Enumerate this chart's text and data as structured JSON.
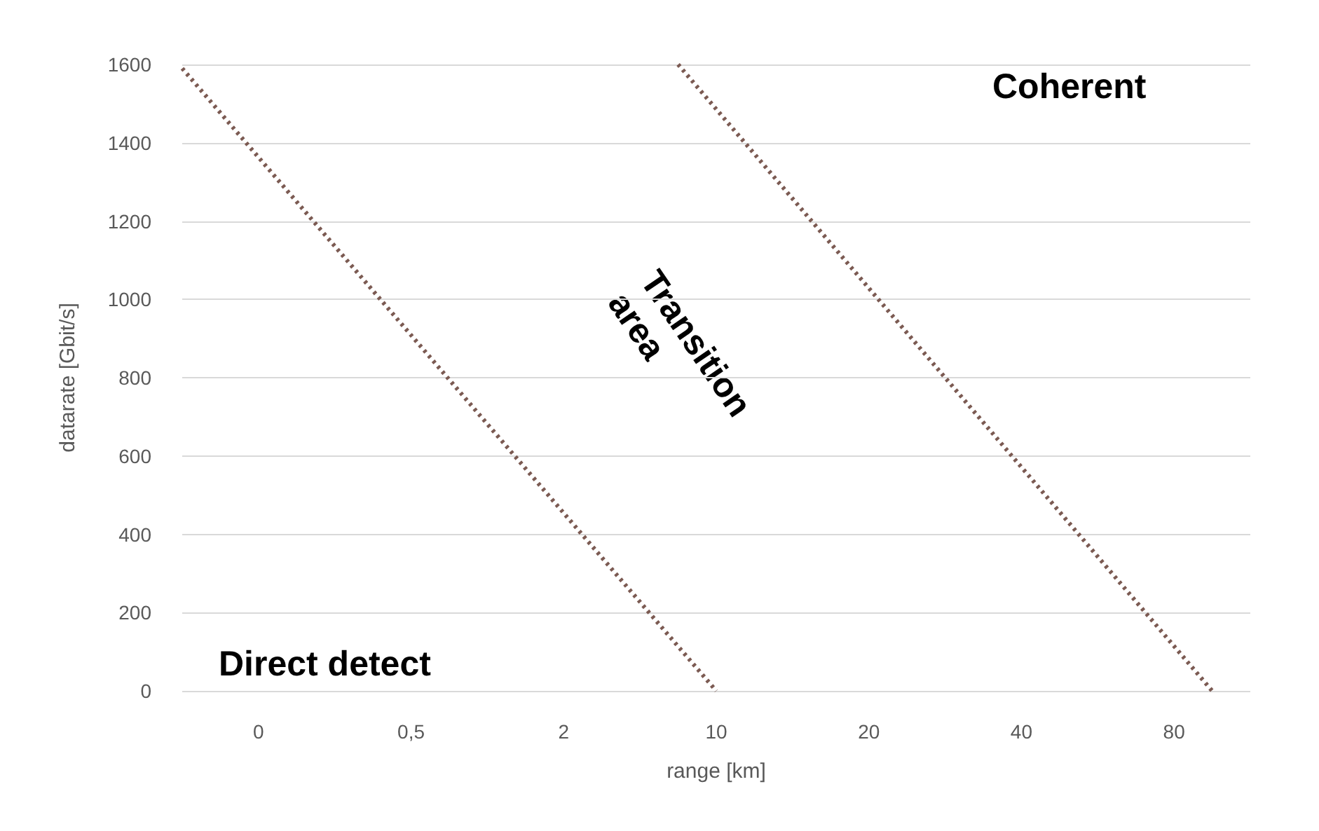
{
  "chart_data": {
    "type": "line",
    "xlabel": "range [km]",
    "ylabel": "datarate [Gbit/s]",
    "categories": [
      null,
      null,
      "0",
      null,
      null,
      null,
      "0,5",
      null,
      null,
      null,
      "2",
      null,
      null,
      null,
      "10",
      null,
      null,
      null,
      "20",
      null,
      null,
      null,
      "40",
      null,
      null,
      null,
      "80",
      null,
      null
    ],
    "ylim": [
      0,
      1600
    ],
    "yticks": [
      0,
      200,
      400,
      600,
      800,
      1000,
      1200,
      1400,
      1600
    ],
    "series": [
      {
        "color": "#7b5a52",
        "values": [
          1590,
          null,
          null,
          null,
          null,
          null,
          null,
          null,
          null,
          null,
          null,
          null,
          null,
          null,
          0,
          null,
          null,
          null,
          null,
          null,
          null,
          null,
          null,
          null,
          null,
          null,
          null,
          null,
          null
        ]
      },
      {
        "color": "#7b5a52",
        "values": [
          null,
          null,
          null,
          null,
          null,
          null,
          null,
          null,
          null,
          null,
          null,
          null,
          null,
          1600,
          null,
          null,
          null,
          null,
          null,
          null,
          null,
          null,
          null,
          null,
          null,
          null,
          null,
          0,
          null
        ]
      }
    ],
    "annotations": [
      "Direct detect",
      "Transition\narea",
      "Coherent"
    ],
    "grid": "y",
    "marker": "none",
    "line_style": "dotted"
  }
}
